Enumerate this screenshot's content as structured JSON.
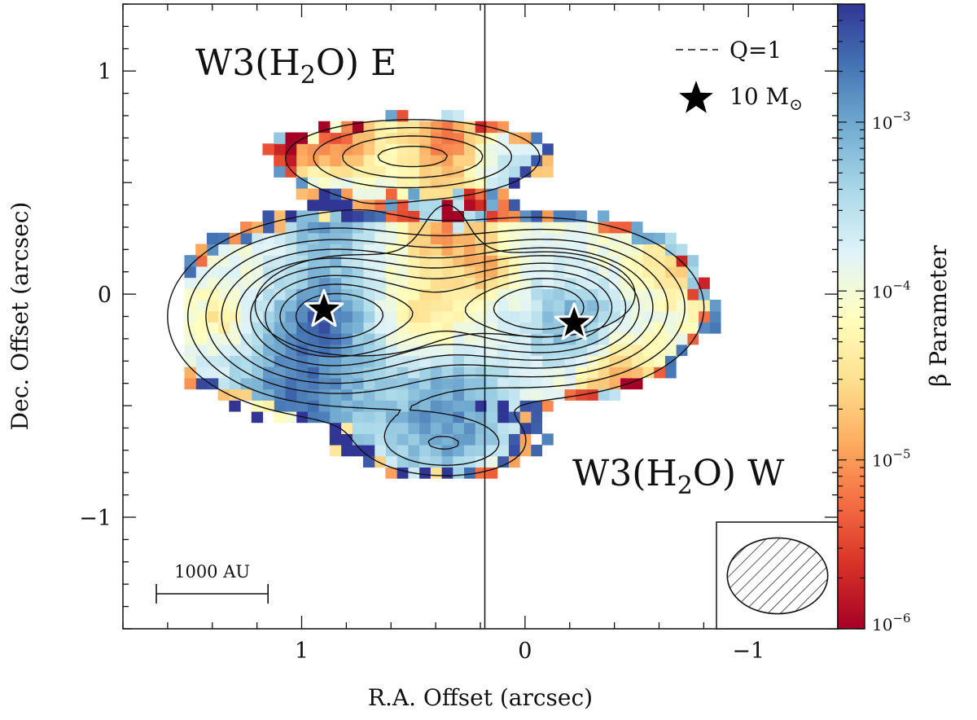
{
  "chart_data": {
    "type": "heatmap",
    "xlabel": "R.A. Offset (arcsec)",
    "ylabel": "Dec. Offset (arcsec)",
    "xlim": [
      1.8,
      -1.4
    ],
    "ylim": [
      -1.5,
      1.3
    ],
    "xticks": [
      1,
      0,
      -1
    ],
    "xtick_labels": [
      "1",
      "0",
      "−1"
    ],
    "yticks": [
      1,
      0,
      -1
    ],
    "ytick_labels": [
      "1",
      "0",
      "−1"
    ],
    "colorbar": {
      "label": "β Parameter",
      "scale": "log",
      "range": [
        1e-06,
        0.005
      ],
      "ticks": [
        1e-06,
        1e-05,
        0.0001,
        0.001
      ],
      "tick_labels": {
        "base": "10",
        "exponents": [
          "−6",
          "−5",
          "−4",
          "−3"
        ]
      }
    },
    "annotations": {
      "east_source": {
        "prefix": "W3(H",
        "subscript": "2",
        "suffix": "O) E"
      },
      "west_source": {
        "prefix": "W3(H",
        "subscript": "2",
        "suffix": "O) W"
      },
      "scale_bar": "1000 AU",
      "scale_bar_length_arcsec": 0.5,
      "divider_ra": 0.18
    },
    "legend": {
      "position": "top-right",
      "entries": [
        {
          "type": "dashed-line",
          "label": "Q=1"
        },
        {
          "type": "star",
          "label_main": "10 M",
          "label_sub": "⊙"
        }
      ]
    },
    "sources": [
      {
        "name": "W3(H2O) E",
        "ra": 0.9,
        "dec": -0.07
      },
      {
        "name": "W3(H2O) W",
        "ra": -0.22,
        "dec": -0.13
      }
    ],
    "beam": {
      "major_arcsec": 0.45,
      "minor_arcsec": 0.34,
      "location": "bottom-right"
    }
  }
}
